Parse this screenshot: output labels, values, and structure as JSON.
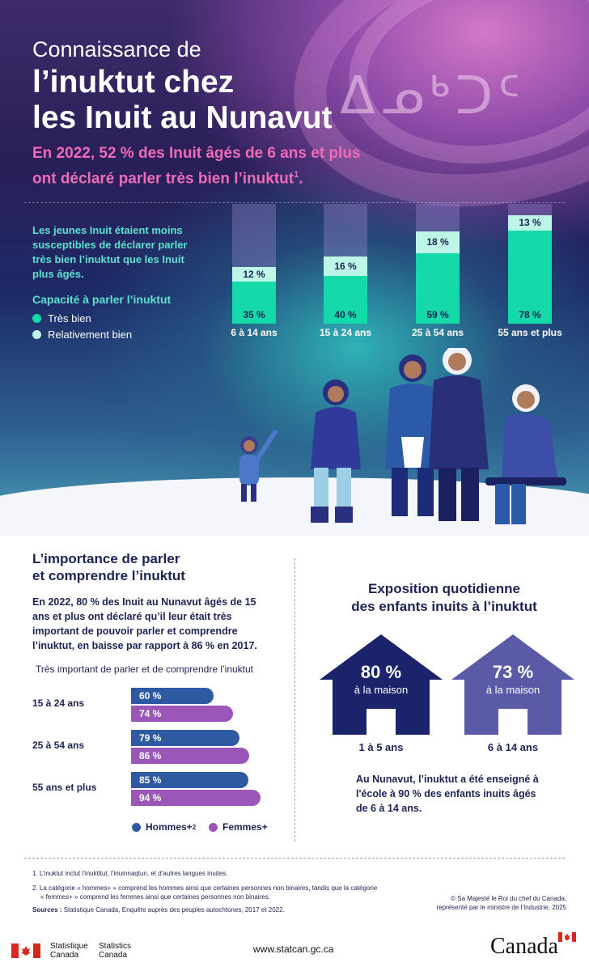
{
  "header": {
    "title_line1": "Connaissance de",
    "title_line2": "l’inuktut chez",
    "title_line3": "les Inuit au Nunavut",
    "decorative_glyphs": "ᐃᓄᒃᑐᑦ",
    "subtitle": "En 2022, 52 % des Inuit âgés de 6 ans et plus ont déclaré parler très bien l’inuktut",
    "subtitle_note": "1",
    "subtitle_end": "."
  },
  "ability": {
    "intro": "Les jeunes Inuit étaient moins susceptibles de déclarer parler très bien l’inuktut que les Inuit plus âgés.",
    "legend_title": "Capacité à parler l’inuktut",
    "legend": [
      {
        "label": "Très bien",
        "color": "#14d9a8"
      },
      {
        "label": "Relativement bien",
        "color": "#bdf5e6"
      }
    ],
    "groups": [
      {
        "label": "6 à 14 ans",
        "tres_bien": 35,
        "tres_bien_text": "35 %",
        "relativement": 12,
        "relativement_text": "12 %"
      },
      {
        "label": "15 à 24 ans",
        "tres_bien": 40,
        "tres_bien_text": "40 %",
        "relativement": 16,
        "relativement_text": "16 %"
      },
      {
        "label": "25 à 54 ans",
        "tres_bien": 59,
        "tres_bien_text": "59 %",
        "relativement": 18,
        "relativement_text": "18 %"
      },
      {
        "label": "55 ans et plus",
        "tres_bien": 78,
        "tres_bien_text": "78 %",
        "relativement": 13,
        "relativement_text": "13 %"
      }
    ]
  },
  "importance": {
    "title_line1": "L’importance de parler",
    "title_line2": "et comprendre l’inuktut",
    "text": "En 2022, 80 % des Inuit au Nunavut âgés de 15 ans et plus ont déclaré qu’il leur était très important de pouvoir parler et comprendre l’inuktut, en baisse par rapport à 86 % en 2017.",
    "chart_caption": "Très important de parler et de comprendre l’inuktut",
    "groups": [
      {
        "label": "15 à 24 ans",
        "hommes": 60,
        "hommes_text": "60 %",
        "femmes": 74,
        "femmes_text": "74 %"
      },
      {
        "label": "25 à 54 ans",
        "hommes": 79,
        "hommes_text": "79 %",
        "femmes": 86,
        "femmes_text": "86 %"
      },
      {
        "label": "55 ans et plus",
        "hommes": 85,
        "hommes_text": "85 %",
        "femmes": 94,
        "femmes_text": "94 %"
      }
    ],
    "legend_men": "Hommes+",
    "legend_men_note": "2",
    "legend_women": "Femmes+",
    "color_men": "#2d5aa0",
    "color_women": "#9b57b8"
  },
  "exposure": {
    "title_line1": "Exposition quotidienne",
    "title_line2": "des enfants inuits à l’inuktut",
    "houses": [
      {
        "value": "80 %",
        "sub": "à la maison",
        "age": "1 à 5 ans",
        "color": "#1b236b"
      },
      {
        "value": "73 %",
        "sub": "à la maison",
        "age": "6 à 14 ans",
        "color": "#5a5aa6"
      }
    ],
    "school_text": "Au Nunavut, l’inuktut a été enseigné à l'école à 90 % des enfants inuits âgés de 6 à 14 ans."
  },
  "footer": {
    "note1": "1.  L’inuktut inclut l’inuktitut, l’inuinnaqtun, et d’autres langues inuites.",
    "note2_line1": "2.  La catégorie « hommes+ » comprend les hommes ainsi que certaines personnes non binaires, tandis que la catégorie",
    "note2_line2": "« femmes+ » comprend les femmes ainsi que certaines personnes non binaires.",
    "sources_label": "Sources :",
    "sources_text": " Statistique Canada, Enquête auprès des peuples autochtones, 2017 et 2022.",
    "copyright_line1": "© Sa Majesté le Roi du chef du Canada,",
    "copyright_line2": "représenté par le ministre de l’Industrie, 2025",
    "statcan_fr1": "Statistique",
    "statcan_fr2": "Canada",
    "statcan_en1": "Statistics",
    "statcan_en2": "Canada",
    "url": "www.statcan.gc.ca",
    "wordmark": "Canada"
  }
}
